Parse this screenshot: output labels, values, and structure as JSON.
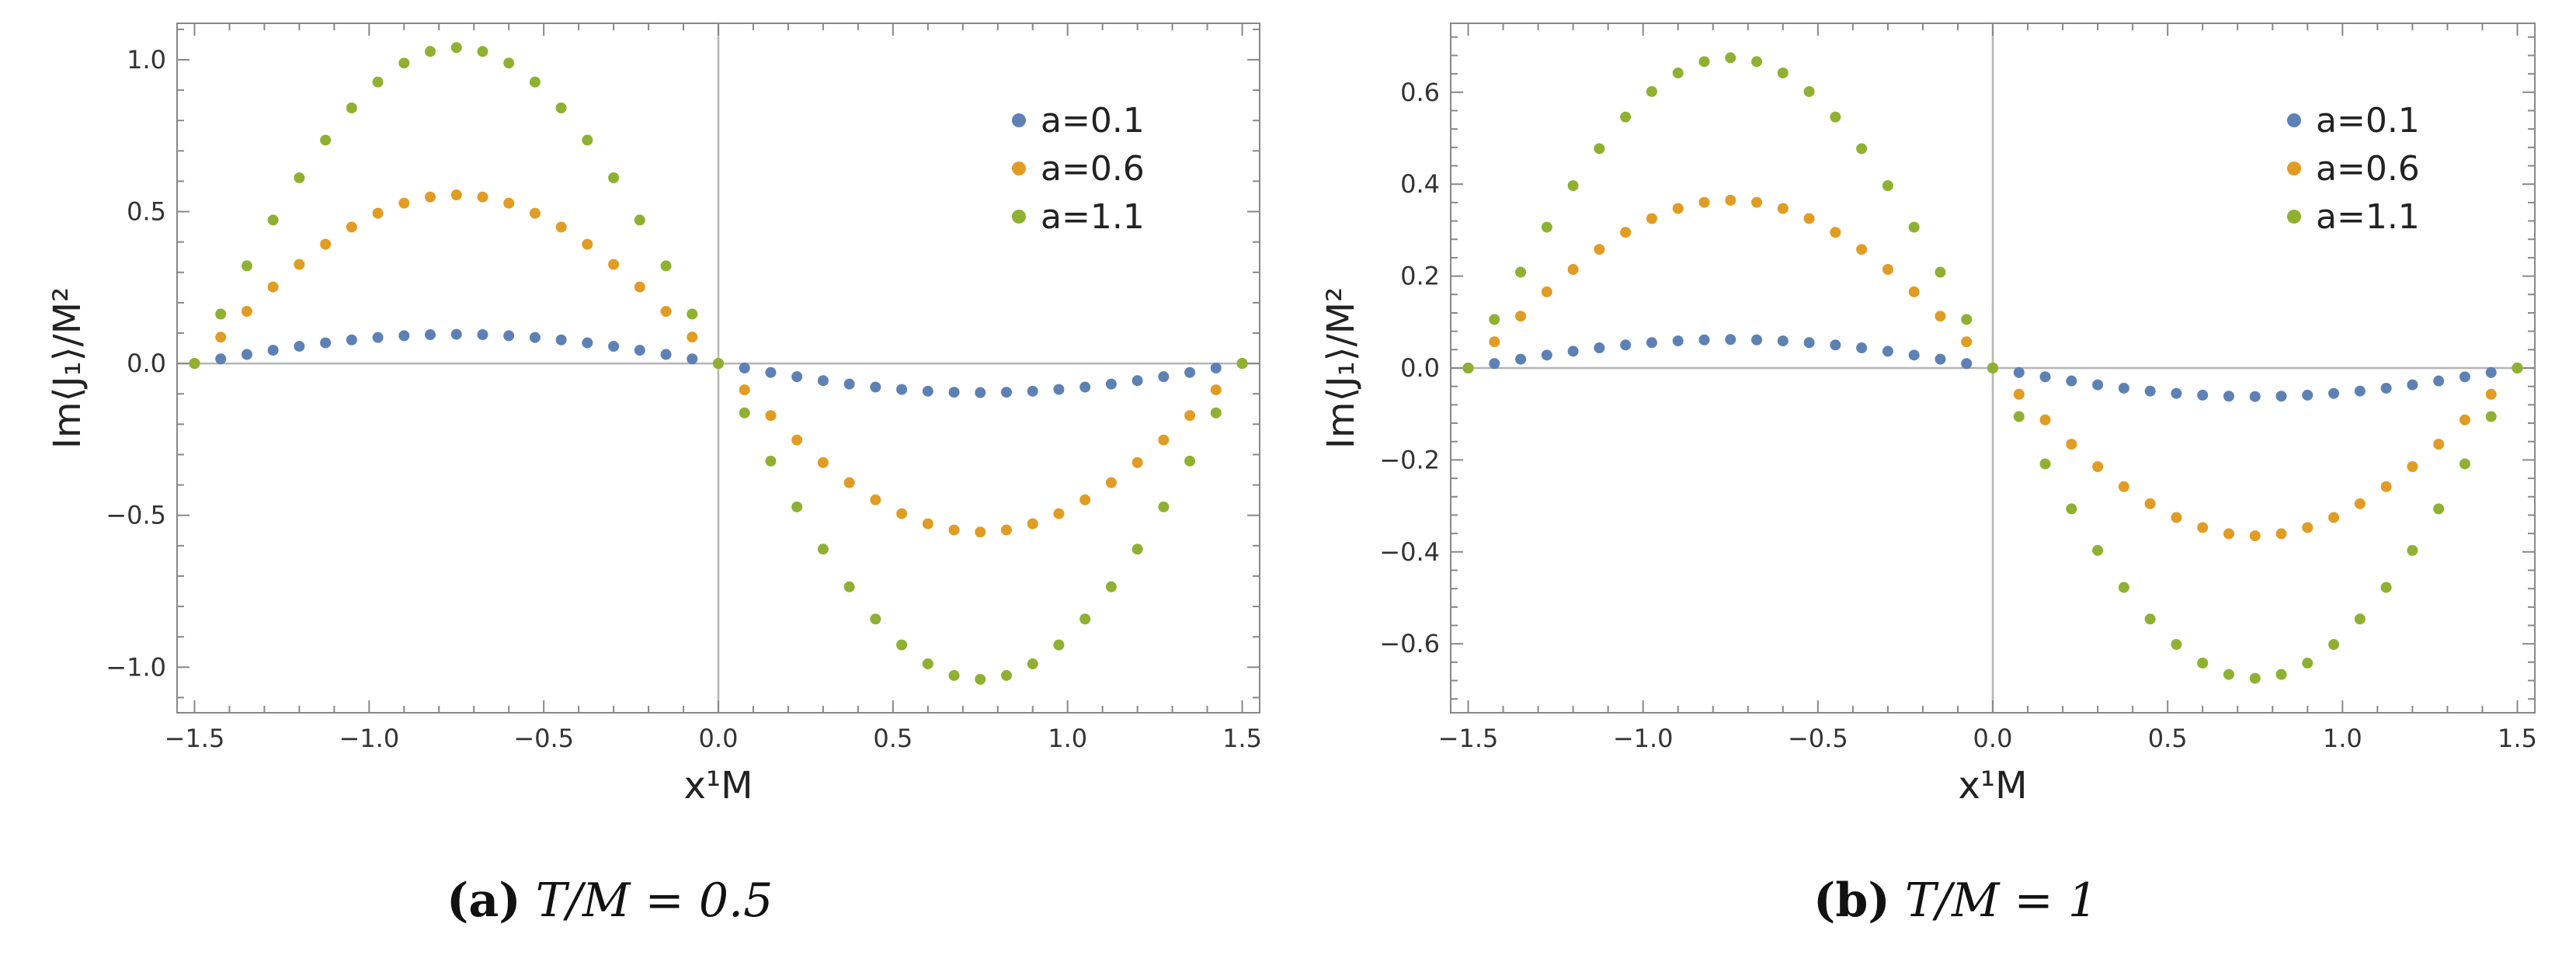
{
  "chart_data": [
    {
      "type": "scatter",
      "xlabel": "x¹M",
      "ylabel": "Im⟨J₁⟩/M²",
      "xlim": [
        -1.55,
        1.55
      ],
      "ylim": [
        -1.15,
        1.12
      ],
      "xticks": [
        "−1.5",
        "−1.0",
        "−0.5",
        "0.0",
        "0.5",
        "1.0",
        "1.5"
      ],
      "yticks": [
        "−1.0",
        "−0.5",
        "0.0",
        "0.5",
        "1.0"
      ],
      "legend_position": "top-right",
      "grid": false,
      "caption": {
        "label": "(a)",
        "text": "T/M = 0.5"
      },
      "series": [
        {
          "name": "a=0.1",
          "color": "#5e81b5",
          "amplitude": 0.096
        },
        {
          "name": "a=0.6",
          "color": "#e19c24",
          "amplitude": 0.555
        },
        {
          "name": "a=1.1",
          "color": "#8fb131",
          "amplitude": 1.04
        }
      ]
    },
    {
      "type": "scatter",
      "xlabel": "x¹M",
      "ylabel": "Im⟨J₁⟩/M²",
      "xlim": [
        -1.55,
        1.55
      ],
      "ylim": [
        -0.75,
        0.75
      ],
      "xticks": [
        "−1.5",
        "−1.0",
        "−0.5",
        "0.0",
        "0.5",
        "1.0",
        "1.5"
      ],
      "yticks": [
        "−0.6",
        "−0.4",
        "−0.2",
        "0.0",
        "0.2",
        "0.4",
        "0.6"
      ],
      "legend_position": "top-right",
      "grid": false,
      "caption": {
        "label": "(b)",
        "text": "T/M = 1"
      },
      "series": [
        {
          "name": "a=0.1",
          "color": "#5e81b5",
          "amplitude": 0.062
        },
        {
          "name": "a=0.6",
          "color": "#e19c24",
          "amplitude": 0.365
        },
        {
          "name": "a=1.1",
          "color": "#8fb131",
          "amplitude": 0.675
        }
      ]
    }
  ]
}
